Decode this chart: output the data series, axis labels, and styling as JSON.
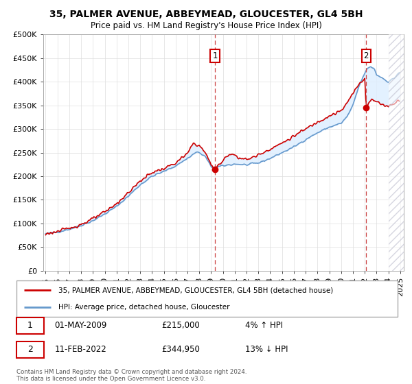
{
  "title": "35, PALMER AVENUE, ABBEYMEAD, GLOUCESTER, GL4 5BH",
  "subtitle": "Price paid vs. HM Land Registry's House Price Index (HPI)",
  "ylabel_ticks": [
    "£0",
    "£50K",
    "£100K",
    "£150K",
    "£200K",
    "£250K",
    "£300K",
    "£350K",
    "£400K",
    "£450K",
    "£500K"
  ],
  "ytick_values": [
    0,
    50000,
    100000,
    150000,
    200000,
    250000,
    300000,
    350000,
    400000,
    450000,
    500000
  ],
  "ylim": [
    0,
    500000
  ],
  "xlim_start": 1994.8,
  "xlim_end": 2025.3,
  "sale1_x": 2009.33,
  "sale1_y": 215000,
  "sale1_label": "01-MAY-2009",
  "sale1_price": "£215,000",
  "sale1_hpi": "4% ↑ HPI",
  "sale2_x": 2022.12,
  "sale2_y": 344950,
  "sale2_label": "11-FEB-2022",
  "sale2_price": "£344,950",
  "sale2_hpi": "13% ↓ HPI",
  "line1_color": "#cc0000",
  "line2_color": "#6699cc",
  "fill_color": "#ddeeff",
  "marker_box_color": "#cc0000",
  "background_color": "#ffffff",
  "plot_bg_color": "#ffffff",
  "grid_color": "#dddddd",
  "legend1_label": "35, PALMER AVENUE, ABBEYMEAD, GLOUCESTER, GL4 5BH (detached house)",
  "legend2_label": "HPI: Average price, detached house, Gloucester",
  "footnote": "Contains HM Land Registry data © Crown copyright and database right 2024.\nThis data is licensed under the Open Government Licence v3.0."
}
